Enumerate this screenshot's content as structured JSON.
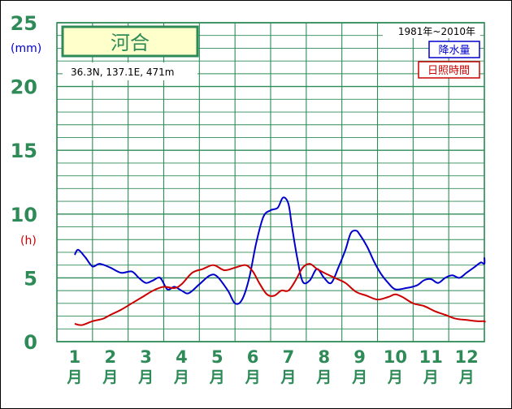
{
  "station": {
    "name": "河合",
    "location": "36.3N,  137.1E,  471m",
    "period": "1981年~2010年"
  },
  "legend": {
    "precip": "降水量",
    "sunshine": "日照時間"
  },
  "units": {
    "precip": "(mm)",
    "sunshine": "(h)"
  },
  "colors": {
    "grid": "#2e8b57",
    "precip": "#0000cc",
    "sunshine": "#cc0000",
    "station_box_bg": "#ffffcc"
  },
  "chart_data": {
    "type": "line",
    "ylim": [
      0,
      25
    ],
    "yticks": [
      "0",
      "5",
      "10",
      "15",
      "20",
      "25"
    ],
    "months": [
      "1",
      "2",
      "3",
      "4",
      "5",
      "6",
      "7",
      "8",
      "9",
      "10",
      "11",
      "12"
    ],
    "month_suffix": "月",
    "series": [
      {
        "name": "降水量",
        "key": "precip",
        "x": [
          1.0,
          1.1,
          1.3,
          1.5,
          1.7,
          2.0,
          2.3,
          2.6,
          2.8,
          3.0,
          3.2,
          3.4,
          3.6,
          3.8,
          4.0,
          4.2,
          4.5,
          4.8,
          5.0,
          5.3,
          5.5,
          5.7,
          5.9,
          6.1,
          6.3,
          6.5,
          6.7,
          6.85,
          7.0,
          7.1,
          7.25,
          7.4,
          7.6,
          7.8,
          8.0,
          8.2,
          8.4,
          8.6,
          8.75,
          8.9,
          9.0,
          9.2,
          9.4,
          9.6,
          9.8,
          10.0,
          10.3,
          10.6,
          10.8,
          11.0,
          11.2,
          11.4,
          11.6,
          11.8,
          12.0,
          12.2,
          12.4,
          12.6,
          12.8
        ],
        "values": [
          6.8,
          7.2,
          6.6,
          5.9,
          6.1,
          5.8,
          5.4,
          5.5,
          5.0,
          4.6,
          4.8,
          5.0,
          4.1,
          4.3,
          4.0,
          3.8,
          4.5,
          5.2,
          5.1,
          4.0,
          3.0,
          3.3,
          5.0,
          7.8,
          9.8,
          10.3,
          10.5,
          11.3,
          10.8,
          9.0,
          6.5,
          4.7,
          4.8,
          5.7,
          5.0,
          4.6,
          5.8,
          7.2,
          8.5,
          8.7,
          8.4,
          7.5,
          6.3,
          5.3,
          4.6,
          4.1,
          4.2,
          4.4,
          4.8,
          4.9,
          4.6,
          5.0,
          5.2,
          5.0,
          5.4,
          5.8,
          6.2,
          6.1,
          6.6
        ]
      },
      {
        "name": "日照時間",
        "key": "sunshine",
        "x": [
          1.0,
          1.2,
          1.5,
          1.8,
          2.0,
          2.3,
          2.6,
          2.9,
          3.2,
          3.5,
          3.8,
          4.0,
          4.3,
          4.6,
          4.9,
          5.2,
          5.5,
          5.8,
          6.0,
          6.2,
          6.4,
          6.6,
          6.8,
          7.0,
          7.2,
          7.4,
          7.6,
          7.8,
          8.0,
          8.3,
          8.6,
          8.9,
          9.2,
          9.5,
          9.8,
          10.0,
          10.2,
          10.5,
          10.8,
          11.1,
          11.4,
          11.7,
          12.0,
          12.3,
          12.6,
          12.8
        ],
        "values": [
          1.4,
          1.3,
          1.6,
          1.8,
          2.1,
          2.5,
          3.0,
          3.5,
          4.0,
          4.3,
          4.2,
          4.5,
          5.4,
          5.7,
          6.0,
          5.6,
          5.8,
          6.0,
          5.5,
          4.5,
          3.7,
          3.6,
          4.0,
          4.0,
          4.8,
          5.8,
          6.1,
          5.7,
          5.4,
          5.0,
          4.6,
          3.9,
          3.6,
          3.3,
          3.5,
          3.7,
          3.5,
          3.0,
          2.8,
          2.4,
          2.1,
          1.8,
          1.7,
          1.6,
          1.6,
          1.5
        ]
      }
    ]
  }
}
